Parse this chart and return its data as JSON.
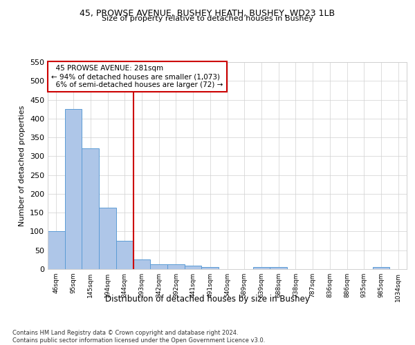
{
  "title1": "45, PROWSE AVENUE, BUSHEY HEATH, BUSHEY, WD23 1LB",
  "title2": "Size of property relative to detached houses in Bushey",
  "xlabel": "Distribution of detached houses by size in Bushey",
  "ylabel": "Number of detached properties",
  "bar_labels": [
    "46sqm",
    "95sqm",
    "145sqm",
    "194sqm",
    "244sqm",
    "293sqm",
    "342sqm",
    "392sqm",
    "441sqm",
    "491sqm",
    "540sqm",
    "589sqm",
    "639sqm",
    "688sqm",
    "738sqm",
    "787sqm",
    "836sqm",
    "886sqm",
    "935sqm",
    "985sqm",
    "1034sqm"
  ],
  "bar_values": [
    100,
    425,
    320,
    163,
    75,
    25,
    12,
    12,
    10,
    5,
    0,
    0,
    5,
    5,
    0,
    0,
    0,
    0,
    0,
    5,
    0
  ],
  "bar_color": "#aec6e8",
  "bar_edge_color": "#5b9bd5",
  "property_line_x": 4.5,
  "annotation_text": "  45 PROWSE AVENUE: 281sqm\n← 94% of detached houses are smaller (1,073)\n  6% of semi-detached houses are larger (72) →",
  "annotation_box_color": "#ffffff",
  "annotation_box_edge_color": "#cc0000",
  "vline_color": "#cc0000",
  "ylim": [
    0,
    550
  ],
  "yticks": [
    0,
    50,
    100,
    150,
    200,
    250,
    300,
    350,
    400,
    450,
    500,
    550
  ],
  "footer": "Contains HM Land Registry data © Crown copyright and database right 2024.\nContains public sector information licensed under the Open Government Licence v3.0.",
  "bg_color": "#ffffff",
  "grid_color": "#d0d0d0"
}
